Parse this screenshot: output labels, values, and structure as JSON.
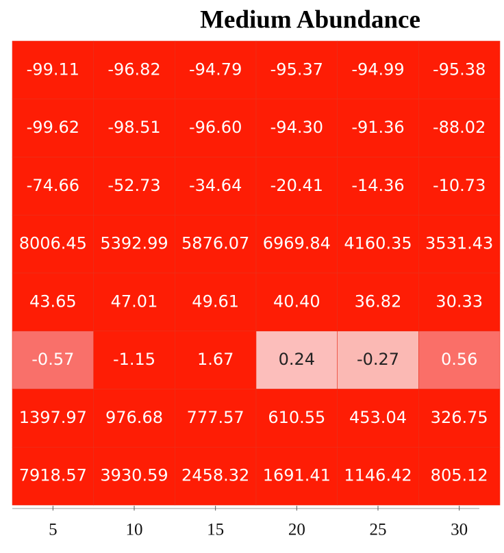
{
  "chart_data": {
    "type": "heatmap",
    "title": "Medium Abundance",
    "categories": [
      5,
      10,
      15,
      20,
      25,
      30
    ],
    "values": [
      [
        -99.11,
        -96.82,
        -94.79,
        -95.37,
        -94.99,
        -95.38
      ],
      [
        -99.62,
        -98.51,
        -96.6,
        -94.3,
        -91.36,
        -88.02
      ],
      [
        -74.66,
        -52.73,
        -34.64,
        -20.41,
        -14.36,
        -10.73
      ],
      [
        8006.45,
        5392.99,
        5876.07,
        6969.84,
        4160.35,
        3531.43
      ],
      [
        43.65,
        47.01,
        49.61,
        40.4,
        36.82,
        30.33
      ],
      [
        -0.57,
        -1.15,
        1.67,
        0.24,
        -0.27,
        0.56
      ],
      [
        1397.97,
        976.68,
        777.57,
        610.55,
        453.04,
        326.75
      ],
      [
        7918.57,
        3930.59,
        2458.32,
        1691.41,
        1146.42,
        805.12
      ]
    ],
    "value_labels": [
      [
        "-99.11",
        "-96.82",
        "-94.79",
        "-95.37",
        "-94.99",
        "-95.38"
      ],
      [
        "-99.62",
        "-98.51",
        "-96.60",
        "-94.30",
        "-91.36",
        "-88.02"
      ],
      [
        "-74.66",
        "-52.73",
        "-34.64",
        "-20.41",
        "-14.36",
        "-10.73"
      ],
      [
        "8006.45",
        "5392.99",
        "5876.07",
        "6969.84",
        "4160.35",
        "3531.43"
      ],
      [
        "43.65",
        "47.01",
        "49.61",
        "40.40",
        "36.82",
        "30.33"
      ],
      [
        "-0.57",
        "-1.15",
        "1.67",
        "0.24",
        "-0.27",
        "0.56"
      ],
      [
        "1397.97",
        "976.68",
        "777.57",
        "610.55",
        "453.04",
        "326.75"
      ],
      [
        "7918.57",
        "3930.59",
        "2458.32",
        "1691.41",
        "1146.42",
        "805.12"
      ]
    ],
    "colors": [
      [
        "#fe1d05",
        "#fe1d05",
        "#fe1d05",
        "#fe1d05",
        "#fe1d05",
        "#fe1d05"
      ],
      [
        "#fe1d05",
        "#fe1d05",
        "#fe1d05",
        "#fe1d05",
        "#fe1d05",
        "#fe1d05"
      ],
      [
        "#fe1d05",
        "#fe1d05",
        "#fe1d05",
        "#fe1d05",
        "#fe1d05",
        "#fe1d05"
      ],
      [
        "#fe1d05",
        "#fe1d05",
        "#fe1d05",
        "#fe1d05",
        "#fe1d05",
        "#fe1d05"
      ],
      [
        "#fe1d05",
        "#fe1d05",
        "#fe1d05",
        "#fe1d05",
        "#fe1d05",
        "#fe1d05"
      ],
      [
        "#f9706a",
        "#fe1d05",
        "#fe1d05",
        "#fcbebb",
        "#fbb9b4",
        "#fa6f68"
      ],
      [
        "#fe1d05",
        "#fe1d05",
        "#fe1d05",
        "#fe1d05",
        "#fe1d05",
        "#fe1d05"
      ],
      [
        "#fe1d05",
        "#fe1d05",
        "#fe1d05",
        "#fe1d05",
        "#fe1d05",
        "#fe1d05"
      ]
    ]
  }
}
